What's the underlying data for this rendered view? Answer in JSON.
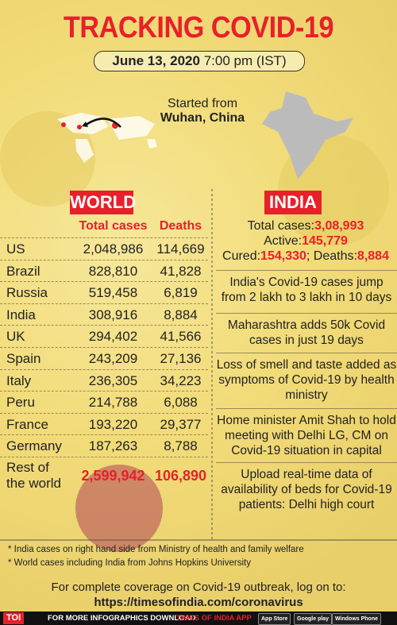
{
  "header": {
    "title": "TRACKING COVID-19",
    "date": "June 13, 2020",
    "time": "7:00 pm (IST)"
  },
  "origin": {
    "line1": "Started from",
    "line2": "Wuhan, China"
  },
  "world": {
    "label": "WORLD",
    "columns": [
      "Total cases",
      "Deaths"
    ],
    "rows": [
      [
        "US",
        "2,048,986",
        "114,669"
      ],
      [
        "Brazil",
        "828,810",
        "41,828"
      ],
      [
        "Russia",
        "519,458",
        "6,819"
      ],
      [
        "India",
        "308,916",
        "8,884"
      ],
      [
        "UK",
        "294,402",
        "41,566"
      ],
      [
        "Spain",
        "243,209",
        "27,136"
      ],
      [
        "Italy",
        "236,305",
        "34,223"
      ],
      [
        "Peru",
        "214,788",
        "6,088"
      ],
      [
        "France",
        "193,220",
        "29,377"
      ],
      [
        "Germany",
        "187,263",
        "8,788"
      ],
      [
        "Rest of the world",
        "2,599,942",
        "106,890"
      ]
    ]
  },
  "india": {
    "label": "INDIA",
    "stats": [
      [
        {
          "text": "Total cases:",
          "hl": false
        },
        {
          "text": "3,08,993",
          "hl": true
        }
      ],
      [
        {
          "text": "Active:",
          "hl": false
        },
        {
          "text": "145,779",
          "hl": true
        }
      ],
      [
        {
          "text": "Cured:",
          "hl": false
        },
        {
          "text": "154,330",
          "hl": true
        },
        {
          "text": "; Deaths:",
          "hl": false
        },
        {
          "text": "8,884",
          "hl": true
        }
      ]
    ],
    "news": [
      "India's Covid-19 cases jump from 2 lakh to 3 lakh in 10 days",
      "Maharashtra adds 50k Covid cases in just 19 days",
      "Loss of smell and taste added as symptoms of Covid-19 by health ministry",
      "Home minister Amit Shah to hold meeting with Delhi LG, CM on Covid-19 situation in capital",
      "Upload real-time data of availability of beds for Covid-19 patients: Delhi high court"
    ]
  },
  "footnotes": [
    "* India cases on right hand side from Ministry of health and family welfare",
    "* World cases including India from Johns Hopkins University"
  ],
  "coverage": {
    "line1": "For complete coverage on Covid-19 outbreak, log on to:",
    "url": "https://timesofindia.com/coronavirus"
  },
  "footer": {
    "logo": "TOI",
    "text": "FOR MORE INFOGRAPHICS DOWNLOAD",
    "app": "TIMES OF INDIA APP",
    "badges": [
      "App Store",
      "Google play",
      "Windows Phone"
    ]
  }
}
